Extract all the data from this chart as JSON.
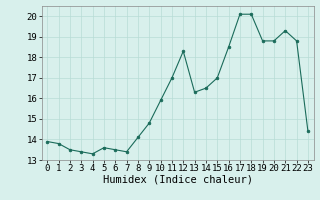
{
  "x": [
    0,
    1,
    2,
    3,
    4,
    5,
    6,
    7,
    8,
    9,
    10,
    11,
    12,
    13,
    14,
    15,
    16,
    17,
    18,
    19,
    20,
    21,
    22,
    23
  ],
  "y": [
    13.9,
    13.8,
    13.5,
    13.4,
    13.3,
    13.6,
    13.5,
    13.4,
    14.1,
    14.8,
    15.9,
    17.0,
    18.3,
    16.3,
    16.5,
    17.0,
    18.5,
    20.1,
    20.1,
    18.8,
    18.8,
    19.3,
    18.8,
    14.4
  ],
  "xlabel": "Humidex (Indice chaleur)",
  "xlim": [
    -0.5,
    23.5
  ],
  "ylim": [
    13,
    20.5
  ],
  "yticks": [
    13,
    14,
    15,
    16,
    17,
    18,
    19,
    20
  ],
  "xticks": [
    0,
    1,
    2,
    3,
    4,
    5,
    6,
    7,
    8,
    9,
    10,
    11,
    12,
    13,
    14,
    15,
    16,
    17,
    18,
    19,
    20,
    21,
    22,
    23
  ],
  "line_color": "#1a6b5a",
  "marker_color": "#1a6b5a",
  "bg_color": "#d8f0ec",
  "grid_color": "#b8dcd6",
  "tick_fontsize": 6.5,
  "label_fontsize": 7.5
}
